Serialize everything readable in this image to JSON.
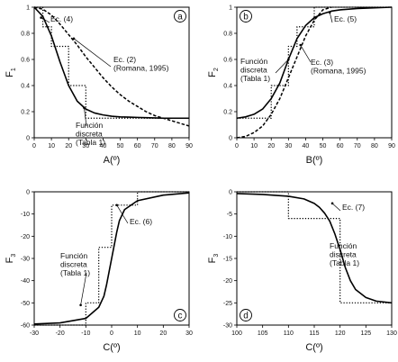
{
  "chart_data": [
    {
      "type": "line",
      "panel": "a",
      "xlabel": "A(º)",
      "ylabel": "F",
      "ylabel_sub": "1",
      "xlim": [
        0,
        90
      ],
      "ylim": [
        0,
        1
      ],
      "xticks": [
        0,
        10,
        20,
        30,
        40,
        50,
        60,
        70,
        80,
        90
      ],
      "yticks": [
        0,
        0.2,
        0.4,
        0.6,
        0.8,
        1
      ],
      "ytick_labels": [
        "0",
        "0.2",
        "0.4",
        "0.6",
        "0.8",
        "1"
      ],
      "series": [
        {
          "name": "Ec. (4)",
          "style": "solid",
          "x": [
            0,
            5,
            10,
            15,
            20,
            25,
            30,
            35,
            40,
            45,
            50,
            55,
            60,
            65,
            70,
            75,
            80,
            85,
            90
          ],
          "y": [
            1.0,
            0.93,
            0.78,
            0.58,
            0.4,
            0.28,
            0.22,
            0.19,
            0.175,
            0.165,
            0.16,
            0.158,
            0.156,
            0.154,
            0.152,
            0.15,
            0.15,
            0.15,
            0.15
          ]
        },
        {
          "name": "Ec. (2) (Romana, 1995)",
          "style": "dashed",
          "x": [
            0,
            5,
            10,
            15,
            20,
            25,
            30,
            35,
            40,
            45,
            50,
            55,
            60,
            65,
            70,
            75,
            80,
            85,
            90
          ],
          "y": [
            1.0,
            0.985,
            0.94,
            0.87,
            0.79,
            0.71,
            0.62,
            0.54,
            0.46,
            0.39,
            0.33,
            0.28,
            0.24,
            0.2,
            0.17,
            0.15,
            0.13,
            0.11,
            0.09
          ]
        },
        {
          "name": "Función discreta (Tabla 1)",
          "style": "dotted",
          "x": [
            0,
            5,
            5,
            10,
            10,
            20,
            20,
            30,
            30,
            90
          ],
          "y": [
            1.0,
            1.0,
            0.85,
            0.85,
            0.7,
            0.7,
            0.4,
            0.4,
            0.15,
            0.15
          ]
        }
      ],
      "annotations": [
        {
          "lines": [
            "Ec. (4)"
          ]
        },
        {
          "lines": [
            "Ec. (2)",
            "(Romana, 1995)"
          ]
        },
        {
          "lines": [
            "Función",
            "discreta",
            "(Tabla 1)"
          ]
        }
      ]
    },
    {
      "type": "line",
      "panel": "b",
      "xlabel": "B(º)",
      "ylabel": "F",
      "ylabel_sub": "2",
      "xlim": [
        0,
        90
      ],
      "ylim": [
        0,
        1
      ],
      "xticks": [
        0,
        10,
        20,
        30,
        40,
        50,
        60,
        70,
        80,
        90
      ],
      "yticks": [
        0,
        0.2,
        0.4,
        0.6,
        0.8,
        1
      ],
      "ytick_labels": [
        "0",
        "0.2",
        "0.4",
        "0.6",
        "0.8",
        "1"
      ],
      "series": [
        {
          "name": "Ec. (5)",
          "style": "solid",
          "x": [
            0,
            5,
            10,
            15,
            20,
            25,
            30,
            35,
            40,
            45,
            50,
            55,
            60,
            70,
            80,
            90
          ],
          "y": [
            0.15,
            0.16,
            0.18,
            0.22,
            0.3,
            0.42,
            0.6,
            0.76,
            0.86,
            0.92,
            0.95,
            0.97,
            0.98,
            0.99,
            0.995,
            1.0
          ]
        },
        {
          "name": "Ec. (3) (Romana, 1995)",
          "style": "dashed",
          "x": [
            0,
            5,
            10,
            15,
            20,
            25,
            30,
            35,
            40,
            45,
            50,
            55
          ],
          "y": [
            0.0,
            0.01,
            0.04,
            0.09,
            0.18,
            0.3,
            0.46,
            0.62,
            0.78,
            0.9,
            0.98,
            1.0
          ]
        },
        {
          "name": "Función discreta (Tabla 1)",
          "style": "dotted",
          "x": [
            0,
            20,
            20,
            30,
            30,
            35,
            35,
            45,
            45,
            90
          ],
          "y": [
            0.15,
            0.15,
            0.4,
            0.4,
            0.7,
            0.7,
            0.85,
            0.85,
            1.0,
            1.0
          ]
        }
      ],
      "annotations": [
        {
          "lines": [
            "Ec. (5)"
          ]
        },
        {
          "lines": [
            "Función",
            "discreta",
            "(Tabla 1)"
          ]
        },
        {
          "lines": [
            "Ec. (3)",
            "(Romana, 1995)"
          ]
        }
      ]
    },
    {
      "type": "line",
      "panel": "c",
      "xlabel": "C(º)",
      "ylabel": "F",
      "ylabel_sub": "3",
      "xlim": [
        -30,
        30
      ],
      "ylim": [
        -60,
        0
      ],
      "xticks": [
        -30,
        -20,
        -10,
        0,
        10,
        20,
        30
      ],
      "yticks": [
        -60,
        -50,
        -40,
        -30,
        -20,
        -10,
        0
      ],
      "ytick_labels": [
        "-60",
        "-50",
        "-40",
        "-30",
        "-20",
        "-10",
        "0"
      ],
      "series": [
        {
          "name": "Ec. (6)",
          "style": "solid",
          "x": [
            -30,
            -20,
            -10,
            -5,
            -3,
            -2,
            -1,
            0,
            1,
            2,
            3,
            5,
            10,
            20,
            30
          ],
          "y": [
            -59.5,
            -59,
            -57,
            -52,
            -47,
            -42,
            -36,
            -30,
            -24,
            -18,
            -13,
            -8,
            -4,
            -1.5,
            -0.5
          ]
        },
        {
          "name": "Función discreta (Tabla 1)",
          "style": "dotted",
          "x": [
            -30,
            -10,
            -10,
            -5,
            -5,
            0,
            0,
            10,
            10,
            30
          ],
          "y": [
            -60,
            -60,
            -50,
            -50,
            -25,
            -25,
            -6,
            -6,
            0,
            0
          ]
        }
      ],
      "annotations": [
        {
          "lines": [
            "Ec. (6)"
          ]
        },
        {
          "lines": [
            "Función",
            "discreta",
            "(Tabla 1)"
          ]
        }
      ]
    },
    {
      "type": "line",
      "panel": "d",
      "xlabel": "C(º)",
      "ylabel": "F",
      "ylabel_sub": "3",
      "xlim": [
        100,
        130
      ],
      "ylim": [
        -30,
        0
      ],
      "xticks": [
        100,
        105,
        110,
        115,
        120,
        125,
        130
      ],
      "yticks": [
        -30,
        -25,
        -20,
        -15,
        -10,
        -5,
        0
      ],
      "ytick_labels": [
        "-30",
        "-25",
        "-20",
        "-15",
        "-10",
        "-5",
        "0"
      ],
      "series": [
        {
          "name": "Ec. (7)",
          "style": "solid",
          "x": [
            100,
            105,
            110,
            113,
            115,
            116,
            117,
            118,
            119,
            120,
            121,
            122,
            123,
            125,
            127,
            130
          ],
          "y": [
            -0.4,
            -0.6,
            -1.0,
            -1.6,
            -2.6,
            -3.5,
            -4.8,
            -6.6,
            -9.5,
            -13,
            -17,
            -20,
            -22,
            -23.8,
            -24.6,
            -25
          ]
        },
        {
          "name": "Función discreta (Tabla 1)",
          "style": "dotted",
          "x": [
            100,
            110,
            110,
            120,
            120,
            130
          ],
          "y": [
            0,
            0,
            -6,
            -6,
            -25,
            -25
          ]
        }
      ],
      "annotations": [
        {
          "lines": [
            "Ec. (7)"
          ]
        },
        {
          "lines": [
            "Función",
            "discreta",
            "(Tabla 1)"
          ]
        }
      ]
    }
  ]
}
